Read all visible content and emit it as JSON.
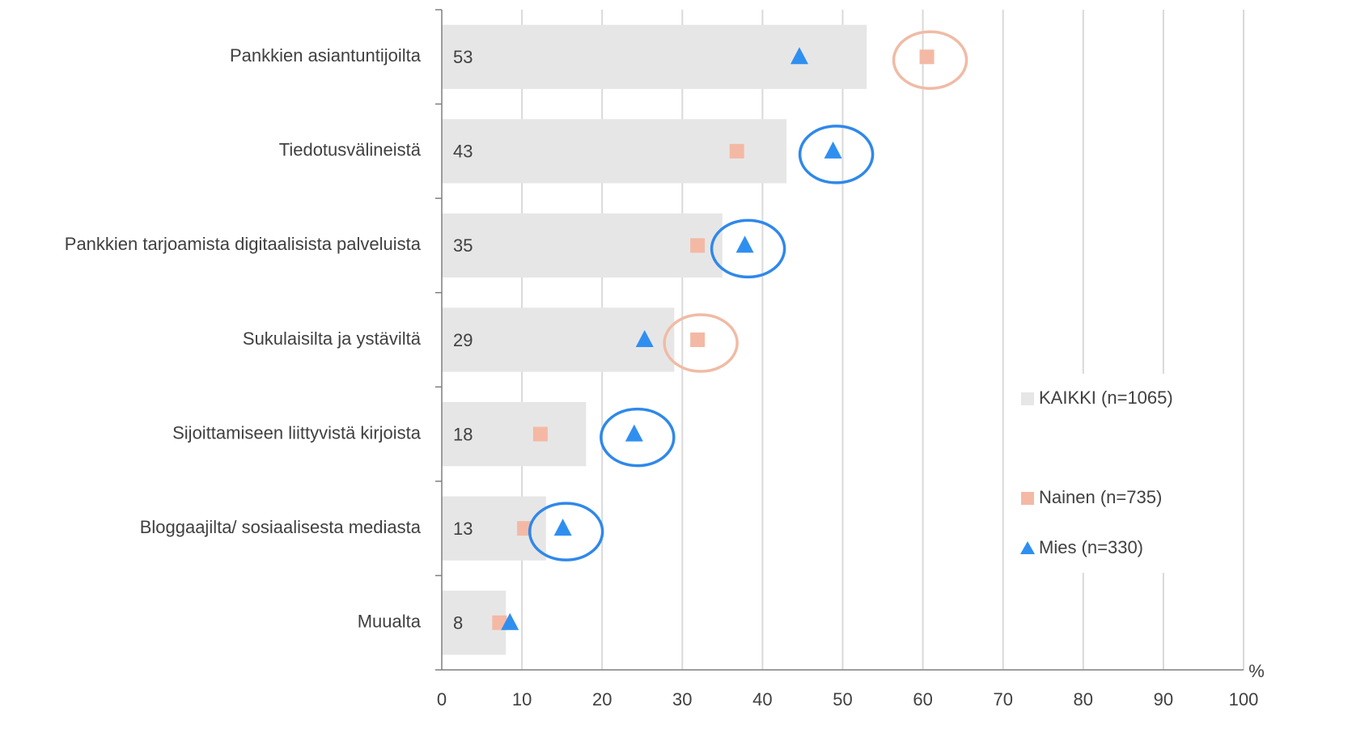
{
  "chart_data": {
    "type": "bar_markers",
    "categories": [
      "Pankkien asiantuntijoilta",
      "Tiedotusvälineistä",
      "Pankkien tarjoamista digitaalisista palveluista",
      "Sukulaisilta ja ystäviltä",
      "Sijoittamiseen liittyvistä kirjoista",
      "Bloggaajilta/ sosiaalisesta mediasta",
      "Muualta"
    ],
    "series": [
      {
        "name": "KAIKKI (n=1065)",
        "color": "#e7e6e6",
        "marker": "bar",
        "values": [
          53,
          43,
          35,
          29,
          18,
          13,
          8
        ]
      },
      {
        "name": "Nainen (n=735)",
        "color": "#f4b9a5",
        "marker": "square",
        "values": [
          60.5,
          36.8,
          31.9,
          31.9,
          12.3,
          10.3,
          7.2
        ],
        "highlight": [
          0,
          3
        ],
        "highlight_color": "#f0bba5"
      },
      {
        "name": "Mies (n=330)",
        "color": "#2f8ff0",
        "marker": "triangle",
        "values": [
          44.6,
          48.8,
          37.8,
          25.3,
          24.0,
          15.1,
          8.5
        ],
        "highlight": [
          1,
          2,
          4,
          5
        ],
        "highlight_color": "#2f88ea"
      }
    ],
    "xlabel": "%",
    "xlim": [
      0,
      100
    ],
    "xticks": [
      0,
      10,
      20,
      30,
      40,
      50,
      60,
      70,
      80,
      90,
      100
    ],
    "grid": true
  }
}
